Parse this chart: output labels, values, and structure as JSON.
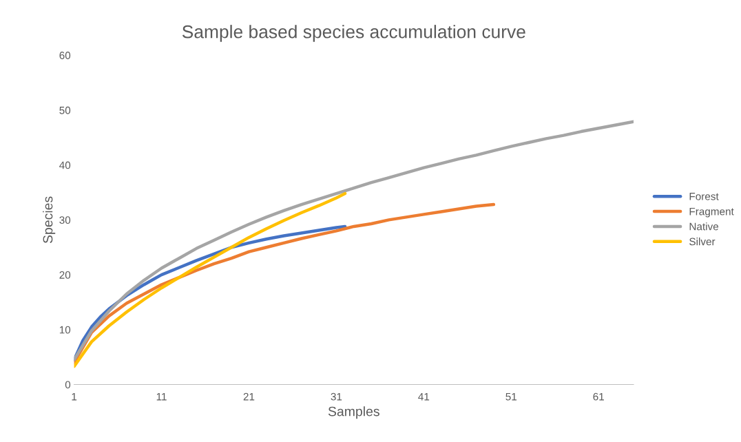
{
  "chart_data": {
    "type": "line",
    "title": "Sample based species accumulation curve",
    "xlabel": "Samples",
    "ylabel": "Species",
    "xlim": [
      1,
      65
    ],
    "xticks": [
      1,
      11,
      21,
      31,
      41,
      51,
      61
    ],
    "ylim": [
      0,
      60
    ],
    "yticks": [
      0,
      10,
      20,
      30,
      40,
      50,
      60
    ],
    "grid": false,
    "legend": "right",
    "marker": "none",
    "line_style": "solid",
    "series": [
      {
        "name": "Forest",
        "color": "#4472c4",
        "x": [
          1,
          2,
          3,
          4,
          5,
          6,
          7,
          8,
          9,
          10,
          11,
          13,
          15,
          17,
          19,
          21,
          23,
          25,
          27,
          29,
          31,
          32
        ],
        "values": [
          4.5,
          8,
          10.5,
          12.3,
          13.8,
          15,
          16.2,
          17.2,
          18.2,
          19.1,
          20,
          21.3,
          22.6,
          23.8,
          25,
          25.8,
          26.5,
          27.1,
          27.6,
          28.1,
          28.6,
          28.8
        ]
      },
      {
        "name": "Fragment",
        "color": "#ed7d31",
        "x": [
          1,
          3,
          5,
          7,
          9,
          11,
          13,
          15,
          17,
          19,
          21,
          23,
          25,
          27,
          29,
          31,
          33,
          35,
          37,
          39,
          41,
          43,
          45,
          47,
          49
        ],
        "values": [
          4,
          9.5,
          12.5,
          14.8,
          16.5,
          18.2,
          19.5,
          20.8,
          22,
          23,
          24.2,
          25,
          25.8,
          26.6,
          27.3,
          28,
          28.8,
          29.3,
          30,
          30.5,
          31,
          31.5,
          32,
          32.5,
          32.8
        ]
      },
      {
        "name": "Native",
        "color": "#a5a5a5",
        "x": [
          1,
          3,
          5,
          7,
          9,
          11,
          13,
          15,
          17,
          19,
          21,
          23,
          25,
          27,
          29,
          31,
          33,
          35,
          37,
          39,
          41,
          43,
          45,
          47,
          49,
          51,
          53,
          55,
          57,
          59,
          61,
          63,
          65
        ],
        "values": [
          4.5,
          9.8,
          13.4,
          16.5,
          19,
          21.2,
          23,
          24.8,
          26.3,
          27.8,
          29.2,
          30.5,
          31.7,
          32.8,
          33.8,
          34.8,
          35.8,
          36.8,
          37.7,
          38.6,
          39.5,
          40.3,
          41.1,
          41.8,
          42.6,
          43.4,
          44.1,
          44.8,
          45.4,
          46.1,
          46.7,
          47.3,
          47.9
        ]
      },
      {
        "name": "Silver",
        "color": "#ffc000",
        "x": [
          1,
          3,
          5,
          7,
          9,
          11,
          13,
          15,
          17,
          19,
          21,
          23,
          25,
          27,
          29,
          31,
          32
        ],
        "values": [
          3.3,
          7.8,
          10.7,
          13.2,
          15.5,
          17.6,
          19.5,
          21.4,
          23.2,
          25,
          26.8,
          28.4,
          29.9,
          31.3,
          32.6,
          34,
          34.8
        ]
      }
    ]
  }
}
